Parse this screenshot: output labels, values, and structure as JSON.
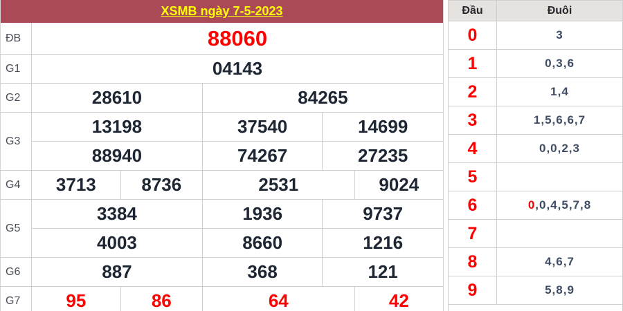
{
  "colors": {
    "maroon": "#ab4a57",
    "title_yellow": "#ffff00",
    "red": "#ff0000",
    "number_dark": "#1e2633",
    "tail_slate": "#3e4c63",
    "border": "#d0d0d0",
    "dd_header_bg": "#e5e2e0"
  },
  "results": {
    "title": "XSMB ngày 7-5-2023",
    "rows": [
      {
        "label": "ĐB",
        "lines": [
          [
            "88060"
          ]
        ]
      },
      {
        "label": "G1",
        "lines": [
          [
            "04143"
          ]
        ]
      },
      {
        "label": "G2",
        "lines": [
          [
            "28610",
            "84265"
          ]
        ]
      },
      {
        "label": "G3",
        "lines": [
          [
            "13198",
            "37540",
            "14699"
          ],
          [
            "88940",
            "74267",
            "27235"
          ]
        ]
      },
      {
        "label": "G4",
        "lines": [
          [
            "3713",
            "8736",
            "2531",
            "9024"
          ]
        ]
      },
      {
        "label": "G5",
        "lines": [
          [
            "3384",
            "1936",
            "9737"
          ],
          [
            "4003",
            "8660",
            "1216"
          ]
        ]
      },
      {
        "label": "G6",
        "lines": [
          [
            "887",
            "368",
            "121"
          ]
        ]
      },
      {
        "label": "G7",
        "lines": [
          [
            "95",
            "86",
            "64",
            "42"
          ]
        ]
      }
    ]
  },
  "dau_duoi": {
    "header": {
      "dau": "Đầu",
      "duoi": "Đuôi"
    },
    "rows": [
      {
        "dau": "0",
        "red": "",
        "duoi": "3"
      },
      {
        "dau": "1",
        "red": "",
        "duoi": "0,3,6"
      },
      {
        "dau": "2",
        "red": "",
        "duoi": "1,4"
      },
      {
        "dau": "3",
        "red": "",
        "duoi": "1,5,6,6,7"
      },
      {
        "dau": "4",
        "red": "",
        "duoi": "0,0,2,3"
      },
      {
        "dau": "5",
        "red": "",
        "duoi": ""
      },
      {
        "dau": "6",
        "red": "0",
        "duoi": ",0,4,5,7,8"
      },
      {
        "dau": "7",
        "red": "",
        "duoi": ""
      },
      {
        "dau": "8",
        "red": "",
        "duoi": "4,6,7"
      },
      {
        "dau": "9",
        "red": "",
        "duoi": "5,8,9"
      }
    ]
  }
}
